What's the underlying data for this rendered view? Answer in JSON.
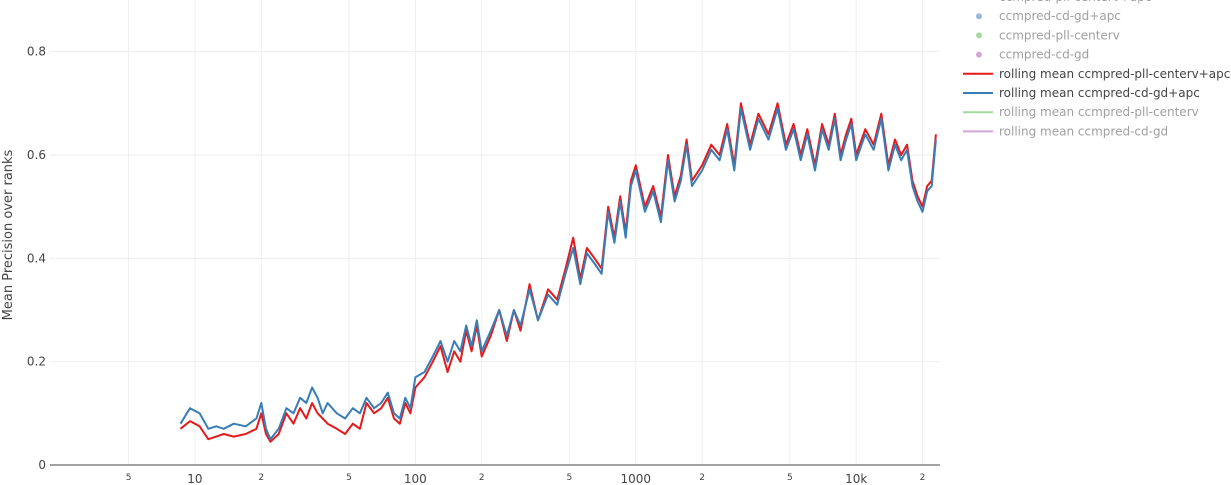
{
  "chart_data": {
    "type": "line",
    "title": "",
    "xlabel": "",
    "ylabel": "Mean Precision over ranks",
    "x_scale": "log",
    "xlim": [
      2.2,
      24000
    ],
    "ylim": [
      0,
      0.9
    ],
    "grid": true,
    "legend_placement": "top-right, outside",
    "y_ticks": [
      "0",
      "0.2",
      "0.4",
      "0.6",
      "0.8"
    ],
    "x_ticks": [
      {
        "value": 5,
        "label": "5",
        "minor": true
      },
      {
        "value": 10,
        "label": "10",
        "minor": false
      },
      {
        "value": 20,
        "label": "2",
        "minor": true
      },
      {
        "value": 50,
        "label": "5",
        "minor": true
      },
      {
        "value": 100,
        "label": "100",
        "minor": false
      },
      {
        "value": 200,
        "label": "2",
        "minor": true
      },
      {
        "value": 500,
        "label": "5",
        "minor": true
      },
      {
        "value": 1000,
        "label": "1000",
        "minor": false
      },
      {
        "value": 2000,
        "label": "2",
        "minor": true
      },
      {
        "value": 5000,
        "label": "5",
        "minor": true
      },
      {
        "value": 10000,
        "label": "10k",
        "minor": false
      },
      {
        "value": 20000,
        "label": "2",
        "minor": true
      }
    ],
    "legend": [
      {
        "label": "ccmpred-pll-centerv+apc",
        "kind": "marker",
        "color": "#f4a0a0",
        "faded": true
      },
      {
        "label": "ccmpred-cd-gd+apc",
        "kind": "marker",
        "color": "#9bb8d8",
        "faded": true
      },
      {
        "label": "ccmpred-pll-centerv",
        "kind": "marker",
        "color": "#a6d9a0",
        "faded": true
      },
      {
        "label": "ccmpred-cd-gd",
        "kind": "marker",
        "color": "#d3a6d8",
        "faded": true
      },
      {
        "label": "rolling mean ccmpred-pll-centerv+apc",
        "kind": "line",
        "color": "#e41a1c",
        "faded": false
      },
      {
        "label": "rolling mean ccmpred-cd-gd+apc",
        "kind": "line",
        "color": "#377eb8",
        "faded": false
      },
      {
        "label": "rolling mean ccmpred-pll-centerv",
        "kind": "line",
        "color": "#a6d9a0",
        "faded": true
      },
      {
        "label": "rolling mean ccmpred-cd-gd",
        "kind": "line",
        "color": "#d3a6d8",
        "faded": true
      }
    ],
    "series": [
      {
        "name": "rolling mean ccmpred-pll-centerv+apc",
        "color": "#e41a1c",
        "x": [
          8.6,
          9.5,
          10.5,
          11.5,
          12.5,
          13.5,
          15,
          17,
          19,
          20,
          21,
          22,
          24,
          26,
          28,
          30,
          32,
          34,
          36,
          38,
          40,
          44,
          48,
          52,
          56,
          60,
          65,
          70,
          75,
          80,
          85,
          90,
          95,
          100,
          110,
          120,
          130,
          140,
          150,
          160,
          170,
          180,
          190,
          200,
          220,
          240,
          260,
          280,
          300,
          330,
          360,
          400,
          440,
          480,
          520,
          560,
          600,
          650,
          700,
          750,
          800,
          850,
          900,
          950,
          1000,
          1100,
          1200,
          1300,
          1400,
          1500,
          1600,
          1700,
          1800,
          2000,
          2200,
          2400,
          2600,
          2800,
          3000,
          3300,
          3600,
          4000,
          4400,
          4800,
          5200,
          5600,
          6000,
          6500,
          7000,
          7500,
          8000,
          8500,
          9000,
          9500,
          10000,
          11000,
          12000,
          13000,
          14000,
          15000,
          16000,
          17000,
          18000,
          19000,
          20000,
          21000,
          22000,
          23000
        ],
        "values": [
          0.07,
          0.085,
          0.075,
          0.05,
          0.055,
          0.06,
          0.055,
          0.06,
          0.07,
          0.1,
          0.06,
          0.045,
          0.06,
          0.1,
          0.08,
          0.11,
          0.09,
          0.12,
          0.1,
          0.09,
          0.08,
          0.07,
          0.06,
          0.08,
          0.07,
          0.12,
          0.1,
          0.11,
          0.13,
          0.09,
          0.08,
          0.12,
          0.1,
          0.15,
          0.17,
          0.2,
          0.23,
          0.18,
          0.22,
          0.2,
          0.26,
          0.22,
          0.27,
          0.21,
          0.25,
          0.3,
          0.24,
          0.3,
          0.26,
          0.35,
          0.28,
          0.34,
          0.32,
          0.38,
          0.44,
          0.36,
          0.42,
          0.4,
          0.38,
          0.5,
          0.44,
          0.52,
          0.45,
          0.55,
          0.58,
          0.5,
          0.54,
          0.48,
          0.6,
          0.52,
          0.56,
          0.63,
          0.55,
          0.58,
          0.62,
          0.6,
          0.66,
          0.58,
          0.7,
          0.62,
          0.68,
          0.64,
          0.7,
          0.62,
          0.66,
          0.6,
          0.65,
          0.58,
          0.66,
          0.62,
          0.68,
          0.6,
          0.64,
          0.67,
          0.6,
          0.65,
          0.62,
          0.68,
          0.58,
          0.63,
          0.6,
          0.62,
          0.55,
          0.52,
          0.5,
          0.54,
          0.55,
          0.64
        ]
      },
      {
        "name": "rolling mean ccmpred-cd-gd+apc",
        "color": "#377eb8",
        "x": [
          8.6,
          9.5,
          10.5,
          11.5,
          12.5,
          13.5,
          15,
          17,
          19,
          20,
          21,
          22,
          24,
          26,
          28,
          30,
          32,
          34,
          36,
          38,
          40,
          44,
          48,
          52,
          56,
          60,
          65,
          70,
          75,
          80,
          85,
          90,
          95,
          100,
          110,
          120,
          130,
          140,
          150,
          160,
          170,
          180,
          190,
          200,
          220,
          240,
          260,
          280,
          300,
          330,
          360,
          400,
          440,
          480,
          520,
          560,
          600,
          650,
          700,
          750,
          800,
          850,
          900,
          950,
          1000,
          1100,
          1200,
          1300,
          1400,
          1500,
          1600,
          1700,
          1800,
          2000,
          2200,
          2400,
          2600,
          2800,
          3000,
          3300,
          3600,
          4000,
          4400,
          4800,
          5200,
          5600,
          6000,
          6500,
          7000,
          7500,
          8000,
          8500,
          9000,
          9500,
          10000,
          11000,
          12000,
          13000,
          14000,
          15000,
          16000,
          17000,
          18000,
          19000,
          20000,
          21000,
          22000,
          23000
        ],
        "values": [
          0.08,
          0.11,
          0.1,
          0.07,
          0.075,
          0.07,
          0.08,
          0.075,
          0.09,
          0.12,
          0.07,
          0.05,
          0.07,
          0.11,
          0.1,
          0.13,
          0.12,
          0.15,
          0.13,
          0.1,
          0.12,
          0.1,
          0.09,
          0.11,
          0.1,
          0.13,
          0.11,
          0.12,
          0.14,
          0.1,
          0.09,
          0.13,
          0.11,
          0.17,
          0.18,
          0.21,
          0.24,
          0.2,
          0.24,
          0.22,
          0.27,
          0.23,
          0.28,
          0.22,
          0.26,
          0.3,
          0.25,
          0.3,
          0.27,
          0.34,
          0.28,
          0.33,
          0.31,
          0.37,
          0.42,
          0.35,
          0.41,
          0.39,
          0.37,
          0.49,
          0.43,
          0.51,
          0.44,
          0.54,
          0.57,
          0.49,
          0.53,
          0.47,
          0.59,
          0.51,
          0.55,
          0.62,
          0.54,
          0.57,
          0.61,
          0.59,
          0.65,
          0.57,
          0.69,
          0.61,
          0.67,
          0.63,
          0.69,
          0.61,
          0.65,
          0.59,
          0.64,
          0.57,
          0.65,
          0.61,
          0.67,
          0.59,
          0.63,
          0.66,
          0.59,
          0.64,
          0.61,
          0.67,
          0.57,
          0.62,
          0.59,
          0.61,
          0.54,
          0.51,
          0.49,
          0.53,
          0.54,
          0.63
        ]
      }
    ]
  }
}
